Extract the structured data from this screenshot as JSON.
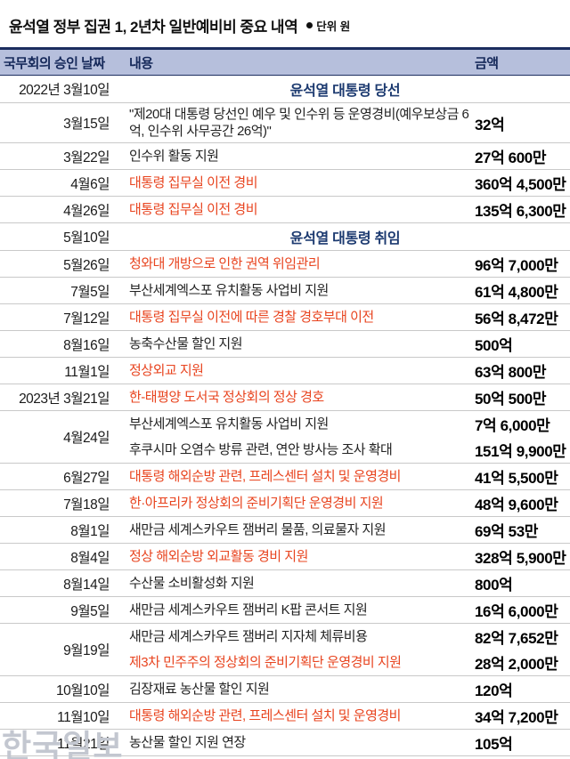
{
  "title": "윤석열 정부 집권 1, 2년차 일반예비비 중요 내역",
  "unit_note": "단위 원",
  "watermark": "한국일보",
  "chart_data": {
    "type": "table",
    "columns": [
      "국무회의 승인 날짜",
      "내용",
      "금액"
    ],
    "rows": [
      {
        "type": "section",
        "date": "2022년 3월10일",
        "label": "윤석열 대통령 당선"
      },
      {
        "type": "item",
        "date": "3월15일",
        "lines": [
          {
            "text": "\"제20대 대통령 당선인 예우 및 인수위 등 운영경비(예우보상금 6억, 인수위 사무공간 26억)\"",
            "red": false,
            "amount": "32억"
          }
        ]
      },
      {
        "type": "item",
        "date": "3월22일",
        "lines": [
          {
            "text": "인수위 활동 지원",
            "red": false,
            "amount": "27억 600만"
          }
        ]
      },
      {
        "type": "item",
        "date": "4월6일",
        "lines": [
          {
            "text": "대통령 집무실 이전 경비",
            "red": true,
            "amount": "360억 4,500만"
          }
        ]
      },
      {
        "type": "item",
        "date": "4월26일",
        "lines": [
          {
            "text": "대통령 집무실 이전 경비",
            "red": true,
            "amount": "135억 6,300만"
          }
        ]
      },
      {
        "type": "section",
        "date": "5월10일",
        "label": "윤석열 대통령 취임"
      },
      {
        "type": "item",
        "date": "5월26일",
        "lines": [
          {
            "text": "청와대 개방으로 인한 권역 위임관리",
            "red": true,
            "amount": "96억 7,000만"
          }
        ]
      },
      {
        "type": "item",
        "date": "7월5일",
        "lines": [
          {
            "text": "부산세계엑스포 유치활동 사업비 지원",
            "red": false,
            "amount": "61억 4,800만"
          }
        ]
      },
      {
        "type": "item",
        "date": "7월12일",
        "lines": [
          {
            "text": "대통령 집무실 이전에 따른 경찰 경호부대 이전",
            "red": true,
            "amount": "56억 8,472만"
          }
        ]
      },
      {
        "type": "item",
        "date": "8월16일",
        "lines": [
          {
            "text": "농축수산물 할인 지원",
            "red": false,
            "amount": "500억"
          }
        ]
      },
      {
        "type": "item",
        "date": "11월1일",
        "lines": [
          {
            "text": "정상외교 지원",
            "red": true,
            "amount": "63억 800만"
          }
        ]
      },
      {
        "type": "item",
        "date": "2023년 3월21일",
        "lines": [
          {
            "text": "한-태평양 도서국 정상회의 정상 경호",
            "red": true,
            "amount": "50억 500만"
          }
        ]
      },
      {
        "type": "item",
        "date": "4월24일",
        "lines": [
          {
            "text": "부산세계엑스포 유치활동 사업비 지원",
            "red": false,
            "amount": "7억 6,000만"
          },
          {
            "text": "후쿠시마 오염수 방류 관련, 연안 방사능 조사 확대",
            "red": false,
            "amount": "151억 9,900만"
          }
        ]
      },
      {
        "type": "item",
        "date": "6월27일",
        "lines": [
          {
            "text": "대통령 해외순방 관련, 프레스센터 설치 및 운영경비",
            "red": true,
            "amount": "41억 5,500만"
          }
        ]
      },
      {
        "type": "item",
        "date": "7월18일",
        "lines": [
          {
            "text": "한·아프리카 정상회의 준비기획단 운영경비 지원",
            "red": true,
            "amount": "48억 9,600만"
          }
        ]
      },
      {
        "type": "item",
        "date": "8월1일",
        "lines": [
          {
            "text": "새만금 세계스카우트 잼버리 물품, 의료물자 지원",
            "red": false,
            "amount": "69억 53만"
          }
        ]
      },
      {
        "type": "item",
        "date": "8월4일",
        "lines": [
          {
            "text": "정상 해외순방 외교활동 경비 지원",
            "red": true,
            "amount": "328억 5,900만"
          }
        ]
      },
      {
        "type": "item",
        "date": "8월14일",
        "lines": [
          {
            "text": "수산물 소비활성화 지원",
            "red": false,
            "amount": "800억"
          }
        ]
      },
      {
        "type": "item",
        "date": "9월5일",
        "lines": [
          {
            "text": "새만금 세계스카우트 잼버리 K팝 콘서트 지원",
            "red": false,
            "amount": "16억 6,000만"
          }
        ]
      },
      {
        "type": "item",
        "date": "9월19일",
        "lines": [
          {
            "text": "새만금 세계스카우트 잼버리 지자체 체류비용",
            "red": false,
            "amount": "82억 7,652만"
          },
          {
            "text": "제3차 민주주의 정상회의 준비기획단 운영경비 지원",
            "red": true,
            "amount": "28억 2,000만"
          }
        ]
      },
      {
        "type": "item",
        "date": "10월10일",
        "lines": [
          {
            "text": "김장재료 농산물 할인 지원",
            "red": false,
            "amount": "120억"
          }
        ]
      },
      {
        "type": "item",
        "date": "11월10일",
        "lines": [
          {
            "text": "대통령 해외순방 관련, 프레스센터 설치 및 운영경비",
            "red": true,
            "amount": "34억 7,200만"
          }
        ]
      },
      {
        "type": "item",
        "date": "11월21일",
        "lines": [
          {
            "text": "농산물 할인 지원 연장",
            "red": false,
            "amount": "105억"
          }
        ]
      }
    ]
  }
}
